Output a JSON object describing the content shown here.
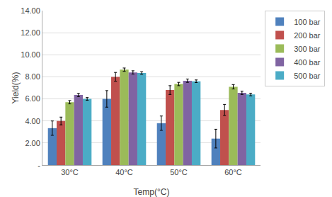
{
  "chart_data": {
    "type": "bar",
    "xlabel": "Temp(°C)",
    "ylabel": "Yield(%)",
    "categories": [
      "30°C",
      "40°C",
      "50°C",
      "60°C"
    ],
    "series": [
      {
        "name": "100 bar",
        "color": "#4F81BD",
        "values": [
          3.35,
          6.0,
          3.8,
          2.4
        ],
        "errors": [
          0.65,
          0.75,
          0.65,
          0.85
        ]
      },
      {
        "name": "200 bar",
        "color": "#C0504D",
        "values": [
          4.0,
          8.0,
          6.8,
          5.0
        ],
        "errors": [
          0.35,
          0.4,
          0.4,
          0.5
        ]
      },
      {
        "name": "300 bar",
        "color": "#9BBB59",
        "values": [
          5.7,
          8.65,
          7.35,
          7.1
        ],
        "errors": [
          0.15,
          0.15,
          0.15,
          0.2
        ]
      },
      {
        "name": "400 bar",
        "color": "#8064A2",
        "values": [
          6.35,
          8.4,
          7.65,
          6.55
        ],
        "errors": [
          0.15,
          0.15,
          0.15,
          0.15
        ]
      },
      {
        "name": "500 bar",
        "color": "#4BACC6",
        "values": [
          6.0,
          8.35,
          7.6,
          6.4
        ],
        "errors": [
          0.12,
          0.12,
          0.12,
          0.12
        ]
      }
    ],
    "ylim": [
      0,
      14.0
    ],
    "yticks": [
      {
        "value": 0,
        "label": "-"
      },
      {
        "value": 2.0,
        "label": "2.00"
      },
      {
        "value": 4.0,
        "label": "4.00"
      },
      {
        "value": 6.0,
        "label": "6.00"
      },
      {
        "value": 8.0,
        "label": "8.00"
      },
      {
        "value": 10.0,
        "label": "10.00"
      },
      {
        "value": 12.0,
        "label": "12.00"
      },
      {
        "value": 14.0,
        "label": "14.00"
      }
    ],
    "grid": true,
    "legend": "right"
  }
}
